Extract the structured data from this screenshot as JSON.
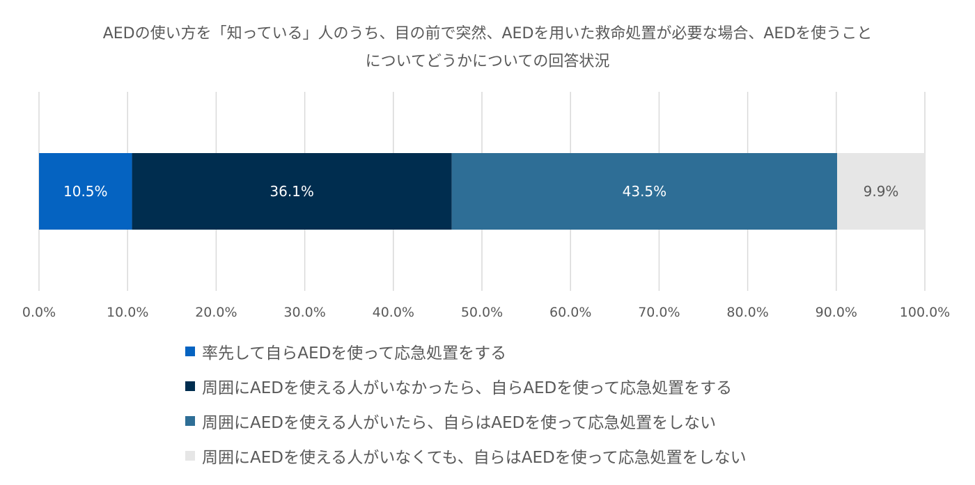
{
  "chart_data": {
    "type": "bar",
    "orientation": "horizontal",
    "stacked": true,
    "title": [
      "AEDの使い方を「知っている」人のうち、目の前で突然、AEDを用いた救命処置が必要な場合、AEDを使うこと",
      "についてどうかについての回答状況"
    ],
    "xlim": [
      0,
      100
    ],
    "xticks": [
      0,
      10,
      20,
      30,
      40,
      50,
      60,
      70,
      80,
      90,
      100
    ],
    "xtick_labels": [
      "0.0%",
      "10.0%",
      "20.0%",
      "30.0%",
      "40.0%",
      "50.0%",
      "60.0%",
      "70.0%",
      "80.0%",
      "90.0%",
      "100.0%"
    ],
    "grid": "vertical",
    "legend_position": "bottom",
    "series": [
      {
        "name": "率先して自らAEDを使って応急処置をする",
        "value": 10.5,
        "label": "10.5%",
        "color": "#0563C1",
        "label_color": "#ffffff"
      },
      {
        "name": "周囲にAEDを使える人がいなかったら、自らAEDを使って応急処置をする",
        "value": 36.1,
        "label": "36.1%",
        "color": "#002D4F",
        "label_color": "#ffffff"
      },
      {
        "name": "周囲にAEDを使える人がいたら、自らはAEDを使って応急処置をしない",
        "value": 43.5,
        "label": "43.5%",
        "color": "#2E6E96",
        "label_color": "#ffffff"
      },
      {
        "name": "周囲にAEDを使える人がいなくても、自らはAEDを使って応急処置をしない",
        "value": 9.9,
        "label": "9.9%",
        "color": "#E6E6E6",
        "label_color": "#595959"
      }
    ]
  }
}
